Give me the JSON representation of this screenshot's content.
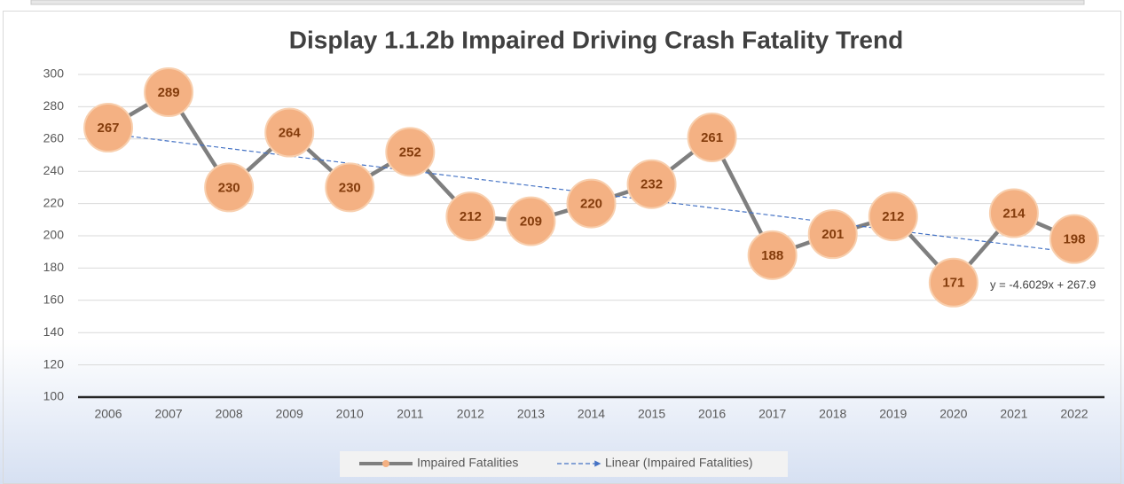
{
  "chart_data": {
    "type": "line",
    "title": "Display 1.1.2b Impaired Driving Crash Fatality Trend",
    "categories": [
      "2006",
      "2007",
      "2008",
      "2009",
      "2010",
      "2011",
      "2012",
      "2013",
      "2014",
      "2015",
      "2016",
      "2017",
      "2018",
      "2019",
      "2020",
      "2021",
      "2022"
    ],
    "series": [
      {
        "name": "Impaired Fatalities",
        "color": "#7f7f7f",
        "marker_color": "#f4b183",
        "values": [
          267,
          289,
          230,
          264,
          230,
          252,
          212,
          209,
          220,
          232,
          261,
          188,
          201,
          212,
          171,
          214,
          198
        ]
      }
    ],
    "trendline": {
      "name": "Linear (Impaired Fatalities)",
      "color": "#4472c4",
      "label": "y = -4.6029x + 267.9",
      "slope": -4.6029,
      "intercept": 267.9
    },
    "ylim": [
      100,
      300
    ],
    "yticks": [
      100,
      120,
      140,
      160,
      180,
      200,
      220,
      240,
      260,
      280,
      300
    ],
    "grid": true,
    "legend": "bottom"
  }
}
